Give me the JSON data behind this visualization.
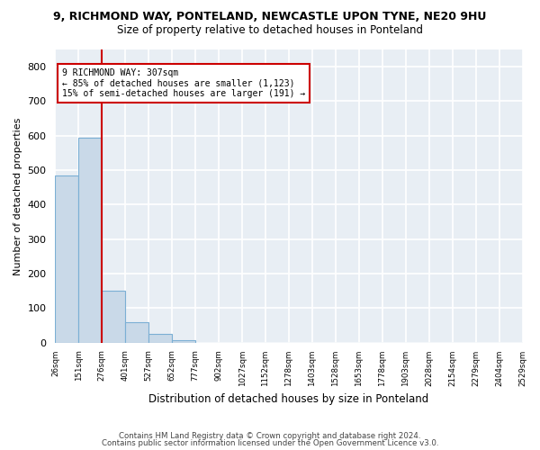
{
  "title_line1": "9, RICHMOND WAY, PONTELAND, NEWCASTLE UPON TYNE, NE20 9HU",
  "title_line2": "Size of property relative to detached houses in Ponteland",
  "xlabel": "Distribution of detached houses by size in Ponteland",
  "ylabel": "Number of detached properties",
  "bar_color": "#c9d9e8",
  "bar_edge_color": "#7bafd4",
  "annotation_box_text": "9 RICHMOND WAY: 307sqm\n← 85% of detached houses are smaller (1,123)\n15% of semi-detached houses are larger (191) →",
  "vline_color": "#cc0000",
  "footer1": "Contains HM Land Registry data © Crown copyright and database right 2024.",
  "footer2": "Contains public sector information licensed under the Open Government Licence v3.0.",
  "bin_labels": [
    "26sqm",
    "151sqm",
    "276sqm",
    "401sqm",
    "527sqm",
    "652sqm",
    "777sqm",
    "902sqm",
    "1027sqm",
    "1152sqm",
    "1278sqm",
    "1403sqm",
    "1528sqm",
    "1653sqm",
    "1778sqm",
    "1903sqm",
    "2028sqm",
    "2154sqm",
    "2279sqm",
    "2404sqm",
    "2529sqm"
  ],
  "bar_heights": [
    484,
    594,
    150,
    60,
    26,
    7,
    0,
    0,
    0,
    0,
    0,
    0,
    0,
    0,
    0,
    0,
    0,
    0,
    0,
    0
  ],
  "ylim": [
    0,
    850
  ],
  "yticks": [
    0,
    100,
    200,
    300,
    400,
    500,
    600,
    700,
    800
  ],
  "background_color": "#e8eef4",
  "grid_color": "#ffffff",
  "property_bin_index": 2
}
